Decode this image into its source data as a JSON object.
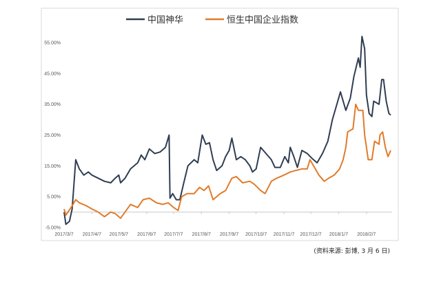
{
  "chart_data": {
    "type": "line",
    "title": "",
    "xlabel": "",
    "ylabel": "",
    "ylim": [
      -5,
      57
    ],
    "xlim": [
      "2017-03-07",
      "2018-03-06"
    ],
    "grid": false,
    "legend": "top",
    "y_ticks": [
      "55.00%",
      "45.00%",
      "35.00%",
      "25.00%",
      "15.00%",
      "5.00%",
      "-5.00%"
    ],
    "y_tick_values": [
      55,
      45,
      35,
      25,
      15,
      5,
      -5
    ],
    "x_ticks": [
      "2017/3/7",
      "2017/4/7",
      "2017/5/7",
      "2017/6/7",
      "2017/7/7",
      "2017/8/7",
      "2017/9/7",
      "2017/10/7",
      "2017/11/7",
      "2017/12/7",
      "2018/1/7",
      "2018/2/7"
    ],
    "x_tick_dates": [
      "2017-03-07",
      "2017-04-07",
      "2017-05-07",
      "2017-06-07",
      "2017-07-07",
      "2017-08-07",
      "2017-09-07",
      "2017-10-07",
      "2017-11-07",
      "2017-12-07",
      "2018-01-07",
      "2018-02-07"
    ],
    "series": [
      {
        "name": "中国神华",
        "color": "#2e3d52",
        "points": [
          [
            "2017-03-07",
            0
          ],
          [
            "2017-03-09",
            -4
          ],
          [
            "2017-03-13",
            -3
          ],
          [
            "2017-03-16",
            1
          ],
          [
            "2017-03-20",
            17
          ],
          [
            "2017-03-24",
            14
          ],
          [
            "2017-03-29",
            12
          ],
          [
            "2017-04-03",
            13
          ],
          [
            "2017-04-07",
            12
          ],
          [
            "2017-04-14",
            11
          ],
          [
            "2017-04-21",
            10
          ],
          [
            "2017-04-28",
            9.5
          ],
          [
            "2017-05-03",
            11
          ],
          [
            "2017-05-07",
            12
          ],
          [
            "2017-05-09",
            9.5
          ],
          [
            "2017-05-14",
            11
          ],
          [
            "2017-05-20",
            14
          ],
          [
            "2017-05-28",
            16
          ],
          [
            "2017-06-01",
            18.5
          ],
          [
            "2017-06-05",
            17
          ],
          [
            "2017-06-10",
            20.5
          ],
          [
            "2017-06-16",
            19
          ],
          [
            "2017-06-22",
            19.5
          ],
          [
            "2017-06-28",
            21
          ],
          [
            "2017-07-02",
            25
          ],
          [
            "2017-07-03",
            4.5
          ],
          [
            "2017-07-06",
            6
          ],
          [
            "2017-07-10",
            4
          ],
          [
            "2017-07-14",
            4
          ],
          [
            "2017-07-18",
            9
          ],
          [
            "2017-07-23",
            15
          ],
          [
            "2017-07-30",
            17
          ],
          [
            "2017-08-03",
            16
          ],
          [
            "2017-08-08",
            25
          ],
          [
            "2017-08-12",
            22
          ],
          [
            "2017-08-16",
            22.5
          ],
          [
            "2017-08-20",
            17
          ],
          [
            "2017-08-24",
            13.5
          ],
          [
            "2017-08-30",
            15
          ],
          [
            "2017-09-03",
            18
          ],
          [
            "2017-09-07",
            20
          ],
          [
            "2017-09-10",
            24
          ],
          [
            "2017-09-15",
            17
          ],
          [
            "2017-09-20",
            18
          ],
          [
            "2017-09-25",
            17
          ],
          [
            "2017-09-30",
            15
          ],
          [
            "2017-10-03",
            13
          ],
          [
            "2017-10-07",
            14
          ],
          [
            "2017-10-12",
            21
          ],
          [
            "2017-10-18",
            19
          ],
          [
            "2017-10-24",
            17
          ],
          [
            "2017-10-28",
            14.5
          ],
          [
            "2017-11-03",
            14.5
          ],
          [
            "2017-11-08",
            18
          ],
          [
            "2017-11-12",
            16
          ],
          [
            "2017-11-14",
            21
          ],
          [
            "2017-11-18",
            18
          ],
          [
            "2017-11-22",
            14.5
          ],
          [
            "2017-11-27",
            20
          ],
          [
            "2017-12-03",
            19
          ],
          [
            "2017-12-08",
            17.5
          ],
          [
            "2017-12-14",
            16
          ],
          [
            "2017-12-20",
            19
          ],
          [
            "2017-12-26",
            23
          ],
          [
            "2017-12-31",
            30
          ],
          [
            "2018-01-09",
            39
          ],
          [
            "2018-01-12",
            36
          ],
          [
            "2018-01-15",
            33
          ],
          [
            "2018-01-20",
            37
          ],
          [
            "2018-01-24",
            44
          ],
          [
            "2018-01-29",
            50
          ],
          [
            "2018-01-31",
            47
          ],
          [
            "2018-02-02",
            57
          ],
          [
            "2018-02-05",
            53
          ],
          [
            "2018-02-07",
            38
          ],
          [
            "2018-02-10",
            32
          ],
          [
            "2018-02-13",
            31
          ],
          [
            "2018-02-15",
            36
          ],
          [
            "2018-02-21",
            35
          ],
          [
            "2018-02-24",
            43
          ],
          [
            "2018-02-26",
            43
          ],
          [
            "2018-03-01",
            36
          ],
          [
            "2018-03-04",
            32
          ],
          [
            "2018-03-06",
            31.5
          ]
        ]
      },
      {
        "name": "恒生中国企业指数",
        "color": "#e07b2a",
        "points": [
          [
            "2017-03-07",
            1
          ],
          [
            "2017-03-09",
            -1
          ],
          [
            "2017-03-16",
            2
          ],
          [
            "2017-03-20",
            4
          ],
          [
            "2017-03-24",
            3
          ],
          [
            "2017-04-01",
            2
          ],
          [
            "2017-04-07",
            1
          ],
          [
            "2017-04-14",
            0
          ],
          [
            "2017-04-21",
            -1.5
          ],
          [
            "2017-04-28",
            0
          ],
          [
            "2017-05-03",
            -0.5
          ],
          [
            "2017-05-09",
            -2
          ],
          [
            "2017-05-14",
            0
          ],
          [
            "2017-05-20",
            2.5
          ],
          [
            "2017-05-28",
            1.5
          ],
          [
            "2017-06-03",
            4
          ],
          [
            "2017-06-10",
            4.5
          ],
          [
            "2017-06-18",
            3
          ],
          [
            "2017-06-25",
            2.5
          ],
          [
            "2017-07-01",
            3
          ],
          [
            "2017-07-07",
            1.5
          ],
          [
            "2017-07-12",
            0.5
          ],
          [
            "2017-07-16",
            5
          ],
          [
            "2017-07-22",
            6
          ],
          [
            "2017-07-30",
            6
          ],
          [
            "2017-08-05",
            8
          ],
          [
            "2017-08-10",
            7
          ],
          [
            "2017-08-15",
            8.5
          ],
          [
            "2017-08-20",
            4
          ],
          [
            "2017-08-28",
            6
          ],
          [
            "2017-09-03",
            7
          ],
          [
            "2017-09-10",
            11
          ],
          [
            "2017-09-15",
            11.5
          ],
          [
            "2017-09-22",
            9.5
          ],
          [
            "2017-09-30",
            10
          ],
          [
            "2017-10-05",
            9
          ],
          [
            "2017-10-12",
            7
          ],
          [
            "2017-10-17",
            6
          ],
          [
            "2017-10-24",
            10
          ],
          [
            "2017-10-30",
            11
          ],
          [
            "2017-11-07",
            12
          ],
          [
            "2017-11-14",
            13
          ],
          [
            "2017-11-20",
            13.5
          ],
          [
            "2017-11-27",
            14
          ],
          [
            "2017-12-03",
            14
          ],
          [
            "2017-12-06",
            17
          ],
          [
            "2017-12-10",
            15
          ],
          [
            "2017-12-16",
            12
          ],
          [
            "2017-12-22",
            10
          ],
          [
            "2017-12-27",
            11
          ],
          [
            "2018-01-02",
            12
          ],
          [
            "2018-01-08",
            14
          ],
          [
            "2018-01-12",
            17
          ],
          [
            "2018-01-15",
            21
          ],
          [
            "2018-01-17",
            26
          ],
          [
            "2018-01-23",
            27
          ],
          [
            "2018-01-26",
            35
          ],
          [
            "2018-01-29",
            33
          ],
          [
            "2018-02-03",
            33
          ],
          [
            "2018-02-05",
            25
          ],
          [
            "2018-02-09",
            17
          ],
          [
            "2018-02-13",
            17
          ],
          [
            "2018-02-16",
            23
          ],
          [
            "2018-02-21",
            22
          ],
          [
            "2018-02-22",
            25
          ],
          [
            "2018-02-25",
            26
          ],
          [
            "2018-02-28",
            21
          ],
          [
            "2018-03-03",
            18
          ],
          [
            "2018-03-06",
            20
          ]
        ]
      }
    ]
  },
  "source_note": "(资料来源: 彭博, 3 月 6 日)"
}
